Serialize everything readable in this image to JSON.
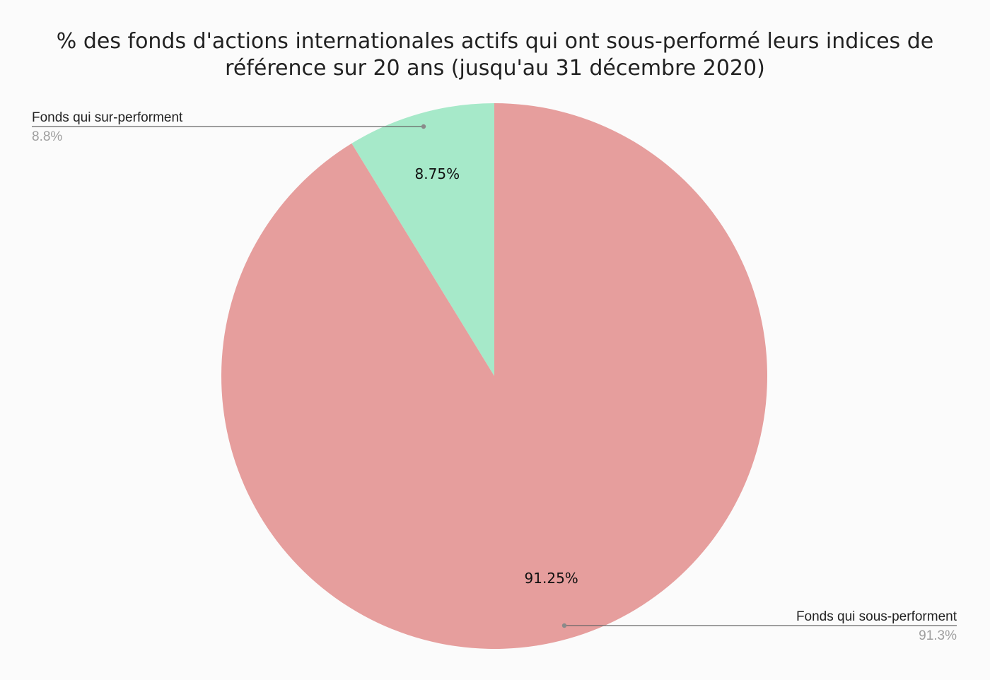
{
  "chart_data": {
    "type": "pie",
    "title_lines": [
      "% des fonds d'actions internationales actifs qui ont sous-performé leurs indices de",
      "référence sur 20 ans (jusqu'au 31 décembre 2020)"
    ],
    "slices": [
      {
        "name": "Fonds qui sur-performent",
        "value": 8.75,
        "slice_label": "8.75%",
        "legend_value": "8.8%",
        "color": "#a6e9c9"
      },
      {
        "name": "Fonds qui sous-performent",
        "value": 91.25,
        "slice_label": "91.25%",
        "legend_value": "91.3%",
        "color": "#e69e9d"
      }
    ],
    "start_angle_deg": 0,
    "direction": "counterclockwise",
    "leader_line_color": "#666666",
    "background": "#fbfbfb"
  }
}
